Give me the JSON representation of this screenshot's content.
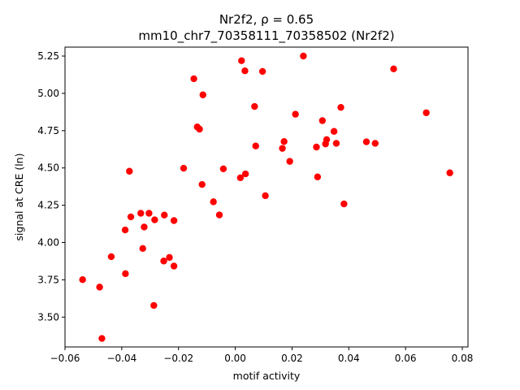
{
  "chart_data": {
    "type": "scatter",
    "title": "Nr2f2, ρ = 0.65",
    "subtitle": "mm10_chr7_70358111_70358502 (Nr2f2)",
    "xlabel": "motif activity",
    "ylabel": "signal at CRE (ln)",
    "xlim": [
      -0.06,
      0.082
    ],
    "ylim": [
      3.3,
      5.31
    ],
    "xticks": [
      -0.06,
      -0.04,
      -0.02,
      0.0,
      0.02,
      0.04,
      0.06,
      0.08
    ],
    "xtick_labels": [
      "−0.06",
      "−0.04",
      "−0.02",
      "0.00",
      "0.02",
      "0.04",
      "0.06",
      "0.08"
    ],
    "yticks": [
      3.5,
      3.75,
      4.0,
      4.25,
      4.5,
      4.75,
      5.0,
      5.25
    ],
    "ytick_labels": [
      "3.50",
      "3.75",
      "4.00",
      "4.25",
      "4.50",
      "4.75",
      "5.00",
      "5.25"
    ],
    "grid": false,
    "marker_color": "#ff0000",
    "points": [
      {
        "x": -0.0538,
        "y": 3.751
      },
      {
        "x": -0.0478,
        "y": 3.701
      },
      {
        "x": -0.047,
        "y": 3.357
      },
      {
        "x": -0.0437,
        "y": 3.905
      },
      {
        "x": -0.0388,
        "y": 4.084
      },
      {
        "x": -0.0387,
        "y": 3.791
      },
      {
        "x": -0.0373,
        "y": 4.478
      },
      {
        "x": -0.0368,
        "y": 4.172
      },
      {
        "x": -0.0333,
        "y": 4.196
      },
      {
        "x": -0.0326,
        "y": 3.96
      },
      {
        "x": -0.0321,
        "y": 4.104
      },
      {
        "x": -0.0304,
        "y": 4.196
      },
      {
        "x": -0.0287,
        "y": 3.578
      },
      {
        "x": -0.0284,
        "y": 4.152
      },
      {
        "x": -0.0252,
        "y": 3.876
      },
      {
        "x": -0.025,
        "y": 4.184
      },
      {
        "x": -0.0232,
        "y": 3.9
      },
      {
        "x": -0.0216,
        "y": 3.842
      },
      {
        "x": -0.0216,
        "y": 4.147
      },
      {
        "x": -0.0182,
        "y": 4.498
      },
      {
        "x": -0.0146,
        "y": 5.098
      },
      {
        "x": -0.0134,
        "y": 4.775
      },
      {
        "x": -0.0126,
        "y": 4.76
      },
      {
        "x": -0.0117,
        "y": 4.389
      },
      {
        "x": -0.0114,
        "y": 4.99
      },
      {
        "x": -0.0077,
        "y": 4.273
      },
      {
        "x": -0.0056,
        "y": 4.185
      },
      {
        "x": -0.0042,
        "y": 4.494
      },
      {
        "x": 0.0018,
        "y": 4.434
      },
      {
        "x": 0.0022,
        "y": 5.219
      },
      {
        "x": 0.0034,
        "y": 5.151
      },
      {
        "x": 0.0036,
        "y": 4.46
      },
      {
        "x": 0.0068,
        "y": 4.912
      },
      {
        "x": 0.0072,
        "y": 4.647
      },
      {
        "x": 0.0096,
        "y": 5.147
      },
      {
        "x": 0.0106,
        "y": 4.314
      },
      {
        "x": 0.0166,
        "y": 4.631
      },
      {
        "x": 0.0172,
        "y": 4.677
      },
      {
        "x": 0.0192,
        "y": 4.544
      },
      {
        "x": 0.0212,
        "y": 4.86
      },
      {
        "x": 0.024,
        "y": 5.25
      },
      {
        "x": 0.0286,
        "y": 4.64
      },
      {
        "x": 0.029,
        "y": 4.44
      },
      {
        "x": 0.0307,
        "y": 4.817
      },
      {
        "x": 0.0318,
        "y": 4.661
      },
      {
        "x": 0.0322,
        "y": 4.69
      },
      {
        "x": 0.0348,
        "y": 4.745
      },
      {
        "x": 0.0356,
        "y": 4.665
      },
      {
        "x": 0.0372,
        "y": 4.906
      },
      {
        "x": 0.0383,
        "y": 4.259
      },
      {
        "x": 0.0462,
        "y": 4.675
      },
      {
        "x": 0.0493,
        "y": 4.665
      },
      {
        "x": 0.0558,
        "y": 5.164
      },
      {
        "x": 0.0673,
        "y": 4.87
      },
      {
        "x": 0.0756,
        "y": 4.467
      }
    ]
  }
}
